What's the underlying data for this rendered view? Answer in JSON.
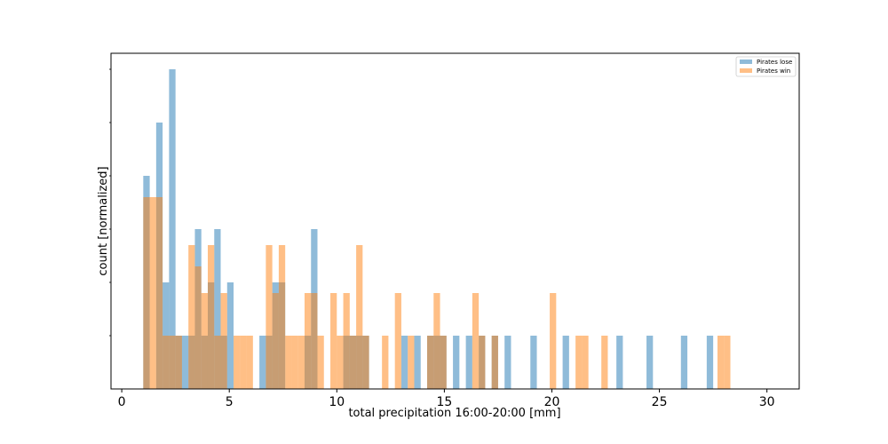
{
  "chart_data": {
    "type": "bar",
    "xlabel": "total precipitation 16:00-20:00 [mm]",
    "ylabel": "count [normalized]",
    "xlim": [
      -0.5,
      31.5
    ],
    "ylim": [
      0,
      6.3
    ],
    "xticks": [
      "0",
      "5",
      "10",
      "15",
      "20",
      "25",
      "30"
    ],
    "xtick_values": [
      0,
      5,
      10,
      15,
      20,
      25,
      30
    ],
    "y_minor_ticks": [
      1,
      2,
      3,
      4,
      5,
      6
    ],
    "legend_position": "top-right",
    "bin_width": 0.3,
    "colors": {
      "lose": "#1f77b4",
      "win": "#ff7f0e"
    },
    "bar_alpha": 0.5,
    "series": [
      {
        "name": "Pirates lose",
        "key": "lose",
        "bars": [
          [
            1.0,
            4.0
          ],
          [
            1.6,
            5.0
          ],
          [
            1.9,
            2.0
          ],
          [
            2.2,
            6.0
          ],
          [
            2.5,
            1.0
          ],
          [
            2.8,
            1.0
          ],
          [
            3.1,
            1.0
          ],
          [
            3.4,
            3.0
          ],
          [
            3.7,
            1.0
          ],
          [
            4.0,
            2.0
          ],
          [
            4.3,
            3.0
          ],
          [
            4.6,
            1.0
          ],
          [
            4.9,
            2.0
          ],
          [
            6.4,
            1.0
          ],
          [
            6.7,
            1.0
          ],
          [
            7.0,
            2.0
          ],
          [
            7.3,
            2.0
          ],
          [
            8.5,
            1.0
          ],
          [
            8.8,
            3.0
          ],
          [
            10.3,
            1.0
          ],
          [
            10.6,
            1.0
          ],
          [
            10.9,
            1.0
          ],
          [
            11.2,
            1.0
          ],
          [
            13.0,
            1.0
          ],
          [
            13.6,
            1.0
          ],
          [
            14.2,
            1.0
          ],
          [
            14.5,
            1.0
          ],
          [
            14.8,
            1.0
          ],
          [
            15.4,
            1.0
          ],
          [
            16.0,
            1.0
          ],
          [
            16.6,
            1.0
          ],
          [
            17.2,
            1.0
          ],
          [
            17.8,
            1.0
          ],
          [
            19.0,
            1.0
          ],
          [
            20.5,
            1.0
          ],
          [
            23.0,
            1.0
          ],
          [
            24.4,
            1.0
          ],
          [
            26.0,
            1.0
          ],
          [
            27.2,
            1.0
          ]
        ]
      },
      {
        "name": "Pirates win",
        "key": "win",
        "bars": [
          [
            1.0,
            3.6
          ],
          [
            1.3,
            3.6
          ],
          [
            1.6,
            3.6
          ],
          [
            1.9,
            1.0
          ],
          [
            2.2,
            1.0
          ],
          [
            2.5,
            1.0
          ],
          [
            3.1,
            2.7
          ],
          [
            3.4,
            2.3
          ],
          [
            3.7,
            1.8
          ],
          [
            4.0,
            2.7
          ],
          [
            4.3,
            1.0
          ],
          [
            4.6,
            1.8
          ],
          [
            5.2,
            1.0
          ],
          [
            5.5,
            1.0
          ],
          [
            5.8,
            1.0
          ],
          [
            6.7,
            2.7
          ],
          [
            7.0,
            1.8
          ],
          [
            7.3,
            2.7
          ],
          [
            7.6,
            1.0
          ],
          [
            7.9,
            1.0
          ],
          [
            8.2,
            1.0
          ],
          [
            8.5,
            1.8
          ],
          [
            8.8,
            1.8
          ],
          [
            9.1,
            1.0
          ],
          [
            9.7,
            1.8
          ],
          [
            10.0,
            1.0
          ],
          [
            10.3,
            1.8
          ],
          [
            10.6,
            1.0
          ],
          [
            10.9,
            2.7
          ],
          [
            11.2,
            1.0
          ],
          [
            12.1,
            1.0
          ],
          [
            12.7,
            1.8
          ],
          [
            13.3,
            1.0
          ],
          [
            14.2,
            1.0
          ],
          [
            14.5,
            1.8
          ],
          [
            14.8,
            1.0
          ],
          [
            16.3,
            1.8
          ],
          [
            16.6,
            1.0
          ],
          [
            17.2,
            1.0
          ],
          [
            19.9,
            1.8
          ],
          [
            21.1,
            1.0
          ],
          [
            21.4,
            1.0
          ],
          [
            22.3,
            1.0
          ],
          [
            27.7,
            1.0
          ],
          [
            28.0,
            1.0
          ]
        ]
      }
    ]
  }
}
